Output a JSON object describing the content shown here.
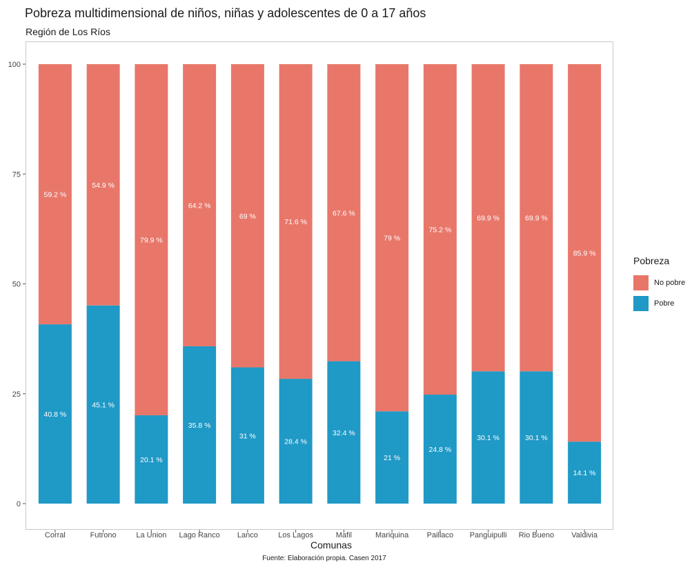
{
  "colors": {
    "no_pobre": "#e8776a",
    "pobre": "#1f99c6"
  },
  "chart_data": {
    "type": "bar",
    "stacked": true,
    "title": "Pobreza multidimensional de niños, niñas y adolescentes de 0 a 17 años",
    "subtitle": "Región de Los Ríos",
    "xlabel": "Comunas",
    "ylabel": "",
    "ylim": [
      0,
      100
    ],
    "yticks": [
      "0",
      "25",
      "50",
      "75",
      "100"
    ],
    "caption": "Fuente: Elaboración propia. Casen 2017",
    "legend": {
      "title": "Pobreza",
      "position": "right",
      "entries": [
        "No pobre",
        "Pobre"
      ]
    },
    "categories": [
      "Corral",
      "Futrono",
      "La Union",
      "Lago Ranco",
      "Lanco",
      "Los Lagos",
      "Mafil",
      "Mariquina",
      "Paillaco",
      "Panguipulli",
      "Rio Bueno",
      "Valdivia"
    ],
    "series": [
      {
        "name": "Pobre",
        "values": [
          40.8,
          45.1,
          20.1,
          35.8,
          31,
          28.4,
          32.4,
          21,
          24.8,
          30.1,
          30.1,
          14.1
        ],
        "labels": [
          "40.8 %",
          "45.1 %",
          "20.1 %",
          "35.8 %",
          "31 %",
          "28.4 %",
          "32.4 %",
          "21 %",
          "24.8 %",
          "30.1 %",
          "30.1 %",
          "14.1 %"
        ]
      },
      {
        "name": "No pobre",
        "values": [
          59.2,
          54.9,
          79.9,
          64.2,
          69,
          71.6,
          67.6,
          79,
          75.2,
          69.9,
          69.9,
          85.9
        ],
        "labels": [
          "59.2 %",
          "54.9 %",
          "79.9 %",
          "64.2 %",
          "69 %",
          "71.6 %",
          "67.6 %",
          "79 %",
          "75.2 %",
          "69.9 %",
          "69.9 %",
          "85.9 %"
        ]
      }
    ]
  }
}
